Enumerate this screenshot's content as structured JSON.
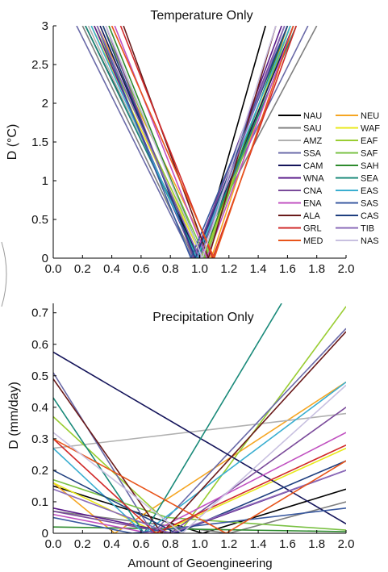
{
  "chart_data": [
    {
      "type": "line",
      "title": "Temperature Only",
      "xlabel": "",
      "ylabel": "D (°C)",
      "xlim": [
        0,
        2
      ],
      "ylim": [
        0,
        3
      ],
      "xticks": [
        "0.0",
        "0.2",
        "0.4",
        "0.6",
        "0.8",
        "1.0",
        "1.2",
        "1.4",
        "1.6",
        "1.8",
        "2.0"
      ],
      "yticks": [
        "0",
        "0.5",
        "1",
        "1.5",
        "2",
        "2.5",
        "3"
      ],
      "legend": "right",
      "series": [
        {
          "name": "NAU",
          "color": "#000000",
          "x": [
            0.22,
            1.0,
            1.45
          ],
          "y": [
            3,
            0,
            3
          ]
        },
        {
          "name": "NEU",
          "color": "#f5a623",
          "x": [
            0.3,
            1.08,
            1.6
          ],
          "y": [
            3,
            0,
            3
          ]
        },
        {
          "name": "SAU",
          "color": "#7f7f7f",
          "x": [
            0.2,
            0.96,
            1.8
          ],
          "y": [
            3,
            0,
            3
          ]
        },
        {
          "name": "WAF",
          "color": "#e8e81a",
          "x": [
            0.26,
            1.02,
            1.62
          ],
          "y": [
            3,
            0,
            3
          ]
        },
        {
          "name": "AMZ",
          "color": "#b0b0b0",
          "x": [
            0.24,
            0.98,
            1.58
          ],
          "y": [
            3,
            0,
            3
          ]
        },
        {
          "name": "EAF",
          "color": "#9acd32",
          "x": [
            0.28,
            1.03,
            1.62
          ],
          "y": [
            3,
            0,
            3
          ]
        },
        {
          "name": "SSA",
          "color": "#6a6aa8",
          "x": [
            0.16,
            0.95,
            1.74
          ],
          "y": [
            3,
            0,
            3
          ]
        },
        {
          "name": "SAF",
          "color": "#7ac143",
          "x": [
            0.34,
            1.04,
            1.62
          ],
          "y": [
            3,
            0,
            3
          ]
        },
        {
          "name": "CAM",
          "color": "#14145a",
          "x": [
            0.32,
            0.99,
            1.64
          ],
          "y": [
            3,
            0,
            3
          ]
        },
        {
          "name": "SAH",
          "color": "#2e8b2e",
          "x": [
            0.38,
            1.02,
            1.6
          ],
          "y": [
            3,
            0,
            3
          ]
        },
        {
          "name": "WNA",
          "color": "#5a1a8a",
          "x": [
            0.28,
            0.97,
            1.56
          ],
          "y": [
            3,
            0,
            3
          ]
        },
        {
          "name": "SEA",
          "color": "#1a8a7a",
          "x": [
            0.22,
            0.99,
            1.66
          ],
          "y": [
            3,
            0,
            3
          ]
        },
        {
          "name": "CNA",
          "color": "#7a4a9a",
          "x": [
            0.36,
            0.96,
            1.58
          ],
          "y": [
            3,
            0,
            3
          ]
        },
        {
          "name": "EAS",
          "color": "#3aaed0",
          "x": [
            0.26,
            0.98,
            1.62
          ],
          "y": [
            3,
            0,
            3
          ]
        },
        {
          "name": "ENA",
          "color": "#c050c0",
          "x": [
            0.42,
            1.05,
            1.64
          ],
          "y": [
            3,
            0,
            3
          ]
        },
        {
          "name": "SAS",
          "color": "#3a5aa0",
          "x": [
            0.3,
            0.94,
            1.6
          ],
          "y": [
            3,
            0,
            3
          ]
        },
        {
          "name": "ALA",
          "color": "#6a1a1a",
          "x": [
            0.48,
            1.06,
            1.52
          ],
          "y": [
            3,
            0,
            3
          ]
        },
        {
          "name": "CAS",
          "color": "#1f3f7f",
          "x": [
            0.34,
            0.97,
            1.6
          ],
          "y": [
            3,
            0,
            3
          ]
        },
        {
          "name": "GRL",
          "color": "#d02a2a",
          "x": [
            0.46,
            1.09,
            1.66
          ],
          "y": [
            3,
            0,
            3
          ]
        },
        {
          "name": "TIB",
          "color": "#8a6ab8",
          "x": [
            0.3,
            1.0,
            1.58
          ],
          "y": [
            3,
            0,
            3
          ]
        },
        {
          "name": "MED",
          "color": "#e8541a",
          "x": [
            0.4,
            1.1,
            1.64
          ],
          "y": [
            3,
            0,
            3
          ]
        },
        {
          "name": "NAS",
          "color": "#c8c0e0",
          "x": [
            0.36,
            1.02,
            1.52
          ],
          "y": [
            3,
            0,
            3
          ]
        }
      ]
    },
    {
      "type": "line",
      "title": "Precipitation Only",
      "xlabel": "Amount of Geoengineering",
      "ylabel": "D (mm/day)",
      "xlim": [
        0,
        2
      ],
      "ylim": [
        0,
        0.73
      ],
      "xticks": [
        "0.0",
        "0.2",
        "0.4",
        "0.6",
        "0.8",
        "1.0",
        "1.2",
        "1.4",
        "1.6",
        "1.8",
        "2.0"
      ],
      "yticks": [
        "0",
        "0.1",
        "0.2",
        "0.3",
        "0.4",
        "0.5",
        "0.6",
        "0.7"
      ],
      "series": [
        {
          "name": "NAU",
          "color": "#000000",
          "x": [
            0,
            1.02,
            2.0
          ],
          "y": [
            0.15,
            0,
            0.14
          ]
        },
        {
          "name": "NEU",
          "color": "#f5a623",
          "x": [
            0,
            0.42,
            2.0
          ],
          "y": [
            0.16,
            0,
            0.48
          ]
        },
        {
          "name": "SAU",
          "color": "#7f7f7f",
          "x": [
            0,
            1.2,
            2.0
          ],
          "y": [
            0.07,
            0,
            0.1
          ]
        },
        {
          "name": "WAF",
          "color": "#e8e81a",
          "x": [
            0,
            0.72,
            2.0
          ],
          "y": [
            0.16,
            0,
            0.27
          ]
        },
        {
          "name": "AMZ",
          "color": "#b0b0b0",
          "x": [
            0,
            2.0
          ],
          "y": [
            0.27,
            0.38
          ]
        },
        {
          "name": "EAF",
          "color": "#9acd32",
          "x": [
            0,
            0.86,
            2.0
          ],
          "y": [
            0.37,
            0,
            0.72
          ]
        },
        {
          "name": "SSA",
          "color": "#6a6aa8",
          "x": [
            0,
            0.68,
            2.0
          ],
          "y": [
            0.51,
            0,
            0.65
          ]
        },
        {
          "name": "SAF",
          "color": "#7ac143",
          "x": [
            0,
            0.78,
            2.0
          ],
          "y": [
            0.17,
            0.05,
            0.01
          ]
        },
        {
          "name": "CAM",
          "color": "#14145a",
          "x": [
            0,
            2.0
          ],
          "y": [
            0.575,
            0.03
          ]
        },
        {
          "name": "SAH",
          "color": "#2e8b2e",
          "x": [
            0,
            2.0
          ],
          "y": [
            0.02,
            0.005
          ]
        },
        {
          "name": "WNA",
          "color": "#5a1a8a",
          "x": [
            0,
            0.82,
            2.0
          ],
          "y": [
            0.08,
            0,
            0.2
          ]
        },
        {
          "name": "SEA",
          "color": "#1a8a7a",
          "x": [
            0,
            0.62,
            1.56
          ],
          "y": [
            0.43,
            0,
            0.73
          ]
        },
        {
          "name": "CNA",
          "color": "#7a4a9a",
          "x": [
            0,
            0.8,
            2.0
          ],
          "y": [
            0.07,
            0,
            0.4
          ]
        },
        {
          "name": "EAS",
          "color": "#3aaed0",
          "x": [
            0,
            0.62,
            2.0
          ],
          "y": [
            0.27,
            0,
            0.48
          ]
        },
        {
          "name": "ENA",
          "color": "#c050c0",
          "x": [
            0,
            0.66,
            2.0
          ],
          "y": [
            0.06,
            0,
            0.32
          ]
        },
        {
          "name": "SAS",
          "color": "#3a5aa0",
          "x": [
            0,
            0.54,
            2.0
          ],
          "y": [
            0.05,
            0,
            0.08
          ]
        },
        {
          "name": "ALA",
          "color": "#6a1a1a",
          "x": [
            0,
            0.74,
            2.0
          ],
          "y": [
            0.49,
            0,
            0.64
          ]
        },
        {
          "name": "CAS",
          "color": "#1f3f7f",
          "x": [
            0,
            0.84,
            2.0
          ],
          "y": [
            0.2,
            0,
            0.23
          ]
        },
        {
          "name": "GRL",
          "color": "#d02a2a",
          "x": [
            0,
            0.7,
            2.0
          ],
          "y": [
            0.3,
            0,
            0.28
          ]
        },
        {
          "name": "TIB",
          "color": "#8a6ab8",
          "x": [
            0,
            0.8,
            2.0
          ],
          "y": [
            0.14,
            0,
            0.2
          ]
        },
        {
          "name": "MED",
          "color": "#e8541a",
          "x": [
            0,
            1.18,
            2.0
          ],
          "y": [
            0.3,
            0,
            0.23
          ]
        },
        {
          "name": "NAS",
          "color": "#c8c0e0",
          "x": [
            0,
            0.88,
            2.0
          ],
          "y": [
            0.32,
            0,
            0.47
          ]
        }
      ]
    }
  ]
}
